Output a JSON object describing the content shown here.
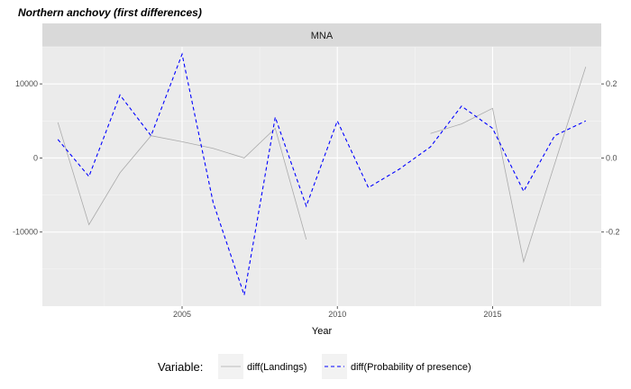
{
  "chart_data": {
    "type": "line",
    "title": "Northern anchovy (first differences)",
    "facet_label": "MNA",
    "xlabel": "Year",
    "xlim": [
      2000.5,
      2018.5
    ],
    "x_ticks": [
      2005,
      2010,
      2015
    ],
    "y_left": {
      "lim": [
        -20000,
        15000
      ],
      "ticks": [
        -10000,
        0,
        10000
      ],
      "tick_labels": [
        "-10000",
        "0",
        "10000"
      ]
    },
    "y_right": {
      "lim": [
        -0.4,
        0.3
      ],
      "ticks": [
        -0.2,
        0.0,
        0.2
      ],
      "tick_labels": [
        "-0.2",
        "0.0",
        "0.2"
      ]
    },
    "grid": true,
    "legend_position": "bottom",
    "legend_title": "Variable:",
    "series": [
      {
        "name": "diff(Landings)",
        "axis": "left",
        "color": "#aaaaaa",
        "style": "solid",
        "segments": [
          [
            {
              "x": 2001,
              "y": 4800
            },
            {
              "x": 2002,
              "y": -9000
            },
            {
              "x": 2003,
              "y": -2000
            },
            {
              "x": 2004,
              "y": 3000
            },
            {
              "x": 2005,
              "y": 2200
            },
            {
              "x": 2006,
              "y": 1300
            },
            {
              "x": 2007,
              "y": 0
            },
            {
              "x": 2008,
              "y": 4000
            },
            {
              "x": 2009,
              "y": -11000
            }
          ],
          [
            {
              "x": 2013,
              "y": 3300
            },
            {
              "x": 2014,
              "y": 4600
            },
            {
              "x": 2015,
              "y": 6700
            },
            {
              "x": 2016,
              "y": -14000
            },
            {
              "x": 2017,
              "y": -800
            },
            {
              "x": 2018,
              "y": 12300
            }
          ]
        ]
      },
      {
        "name": "diff(Probability of presence)",
        "axis": "right",
        "color": "#0000ff",
        "style": "dashed",
        "segments": [
          [
            {
              "x": 2001,
              "y": 0.05
            },
            {
              "x": 2002,
              "y": -0.05
            },
            {
              "x": 2003,
              "y": 0.17
            },
            {
              "x": 2004,
              "y": 0.06
            },
            {
              "x": 2005,
              "y": 0.28
            },
            {
              "x": 2006,
              "y": -0.12
            },
            {
              "x": 2007,
              "y": -0.37
            },
            {
              "x": 2008,
              "y": 0.11
            },
            {
              "x": 2009,
              "y": -0.13
            },
            {
              "x": 2010,
              "y": 0.1
            },
            {
              "x": 2011,
              "y": -0.08
            },
            {
              "x": 2012,
              "y": -0.03
            },
            {
              "x": 2013,
              "y": 0.03
            },
            {
              "x": 2014,
              "y": 0.14
            },
            {
              "x": 2015,
              "y": 0.08
            },
            {
              "x": 2016,
              "y": -0.09
            },
            {
              "x": 2017,
              "y": 0.06
            },
            {
              "x": 2018,
              "y": 0.1
            }
          ]
        ]
      }
    ]
  }
}
